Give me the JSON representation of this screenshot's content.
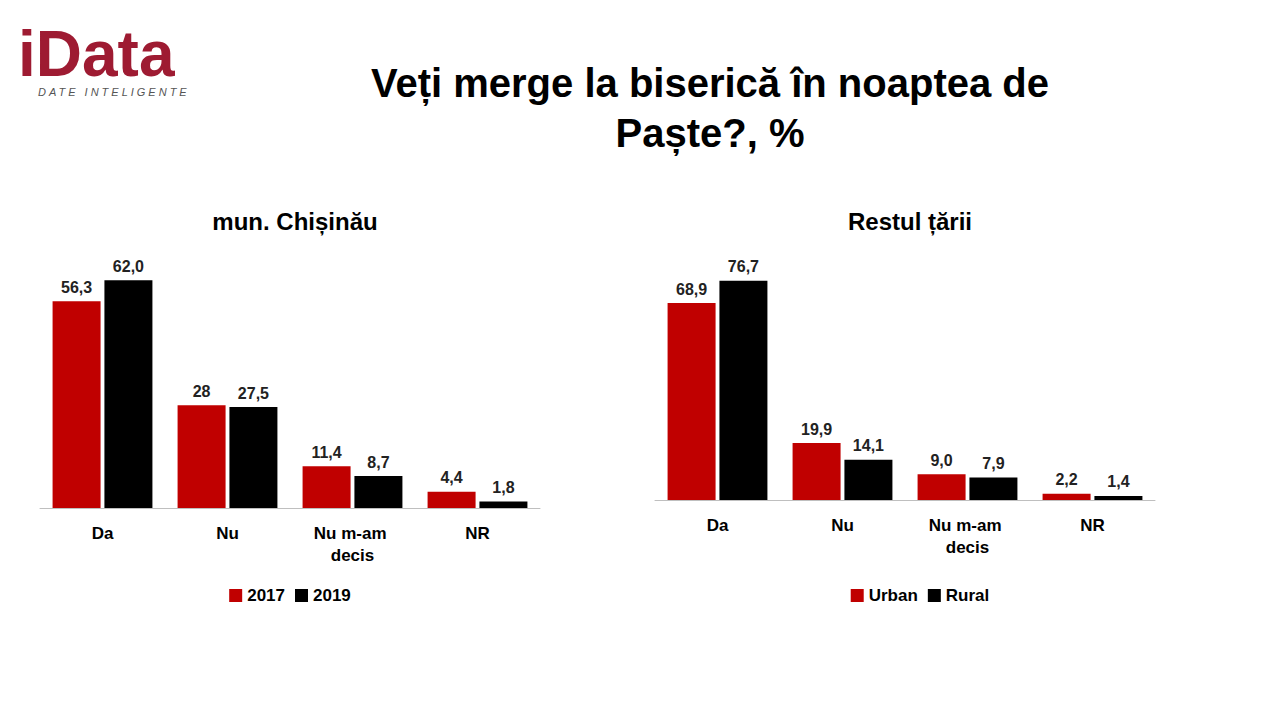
{
  "header": {
    "logo": "iData",
    "logo_tagline": "DATE INTELIGENTE",
    "title": "Veți merge la biserică în noaptea de Paște?, %"
  },
  "chart_data": [
    {
      "type": "bar",
      "title": "mun. Chișinău",
      "categories": [
        "Da",
        "Nu",
        "Nu m-am decis",
        "NR"
      ],
      "series": [
        {
          "name": "2017",
          "color": "#c00000",
          "values": [
            56.3,
            28,
            11.4,
            4.4
          ],
          "value_labels": [
            "56,3",
            "28",
            "11,4",
            "4,4"
          ]
        },
        {
          "name": "2019",
          "color": "#000000",
          "values": [
            62.0,
            27.5,
            8.7,
            1.8
          ],
          "value_labels": [
            "62,0",
            "27,5",
            "8,7",
            "1,8"
          ]
        }
      ],
      "ylim": [
        0,
        70
      ],
      "tick_labels": "x",
      "grid": false,
      "legend": "bottom",
      "data_labels": true
    },
    {
      "type": "bar",
      "title": "Restul țării",
      "categories": [
        "Da",
        "Nu",
        "Nu m-am decis",
        "NR"
      ],
      "series": [
        {
          "name": "Urban",
          "color": "#c00000",
          "values": [
            68.9,
            19.9,
            9.0,
            2.2
          ],
          "value_labels": [
            "68,9",
            "19,9",
            "9,0",
            "2,2"
          ]
        },
        {
          "name": "Rural",
          "color": "#000000",
          "values": [
            76.7,
            14.1,
            7.9,
            1.4
          ],
          "value_labels": [
            "76,7",
            "14,1",
            "7,9",
            "1,4"
          ]
        }
      ],
      "ylim": [
        0,
        85
      ],
      "tick_labels": "x",
      "grid": false,
      "legend": "bottom",
      "data_labels": true
    }
  ]
}
